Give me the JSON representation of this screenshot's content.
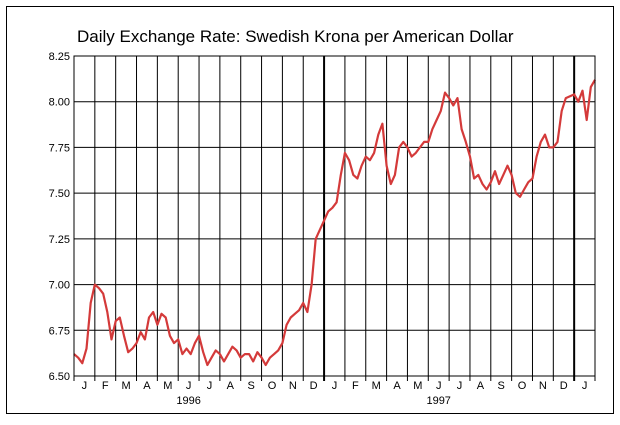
{
  "chart_data": {
    "type": "line",
    "title": "Daily Exchange Rate: Swedish Krona per American Dollar",
    "xlabel": "",
    "ylabel": "",
    "ylim": [
      6.5,
      8.25
    ],
    "yticks": [
      "6.50",
      "6.75",
      "7.00",
      "7.25",
      "7.50",
      "7.75",
      "8.00",
      "8.25"
    ],
    "xticks": [
      "J",
      "F",
      "M",
      "A",
      "M",
      "J",
      "J",
      "A",
      "S",
      "O",
      "N",
      "D",
      "J",
      "F",
      "M",
      "A",
      "M",
      "J",
      "J",
      "A",
      "S",
      "O",
      "N",
      "D",
      "J"
    ],
    "year_labels": [
      {
        "label": "1996",
        "month_index": 5.5
      },
      {
        "label": "1997",
        "month_index": 17.5
      }
    ],
    "xlim_months": [
      0,
      25
    ],
    "grid": true,
    "line_color": "#d43a3a",
    "series": [
      {
        "x_months": [
          0.0,
          0.2,
          0.4,
          0.6,
          0.8,
          1.0,
          1.2,
          1.4,
          1.6,
          1.8,
          2.0,
          2.2,
          2.4,
          2.6,
          2.8,
          3.0,
          3.2,
          3.4,
          3.6,
          3.8,
          4.0,
          4.2,
          4.4,
          4.6,
          4.8,
          5.0,
          5.2,
          5.4,
          5.6,
          5.8,
          6.0,
          6.2,
          6.4,
          6.6,
          6.8,
          7.0,
          7.2,
          7.4,
          7.6,
          7.8,
          8.0,
          8.2,
          8.4,
          8.6,
          8.8,
          9.0,
          9.2,
          9.4,
          9.6,
          9.8,
          10.0,
          10.2,
          10.4,
          10.6,
          10.8,
          11.0,
          11.2,
          11.4,
          11.6,
          11.8,
          12.0,
          12.2,
          12.4,
          12.6,
          12.8,
          13.0,
          13.2,
          13.4,
          13.6,
          13.8,
          14.0,
          14.2,
          14.4,
          14.6,
          14.8,
          15.0,
          15.2,
          15.4,
          15.6,
          15.8,
          16.0,
          16.2,
          16.4,
          16.6,
          16.8,
          17.0,
          17.2,
          17.4,
          17.6,
          17.8,
          18.0,
          18.2,
          18.4,
          18.6,
          18.8,
          19.0,
          19.2,
          19.4,
          19.6,
          19.8,
          20.0,
          20.2,
          20.4,
          20.6,
          20.8,
          21.0,
          21.2,
          21.4,
          21.6,
          21.8,
          22.0,
          22.2,
          22.4,
          22.6,
          22.8,
          23.0,
          23.2,
          23.4,
          23.6,
          23.8,
          24.0,
          24.2,
          24.4,
          24.6,
          24.8,
          25.0
        ],
        "values": [
          6.62,
          6.6,
          6.57,
          6.65,
          6.9,
          7.0,
          6.98,
          6.95,
          6.85,
          6.7,
          6.8,
          6.82,
          6.72,
          6.63,
          6.65,
          6.68,
          6.74,
          6.7,
          6.82,
          6.85,
          6.78,
          6.84,
          6.82,
          6.72,
          6.68,
          6.7,
          6.62,
          6.65,
          6.62,
          6.68,
          6.72,
          6.63,
          6.56,
          6.6,
          6.64,
          6.62,
          6.58,
          6.62,
          6.66,
          6.64,
          6.6,
          6.62,
          6.62,
          6.58,
          6.63,
          6.6,
          6.56,
          6.6,
          6.62,
          6.64,
          6.68,
          6.78,
          6.82,
          6.84,
          6.86,
          6.9,
          6.85,
          7.0,
          7.25,
          7.3,
          7.35,
          7.4,
          7.42,
          7.45,
          7.6,
          7.72,
          7.68,
          7.6,
          7.58,
          7.65,
          7.7,
          7.68,
          7.72,
          7.82,
          7.88,
          7.65,
          7.55,
          7.6,
          7.75,
          7.78,
          7.75,
          7.7,
          7.72,
          7.75,
          7.78,
          7.78,
          7.85,
          7.9,
          7.95,
          8.05,
          8.02,
          7.98,
          8.02,
          7.85,
          7.78,
          7.7,
          7.58,
          7.6,
          7.55,
          7.52,
          7.56,
          7.62,
          7.55,
          7.6,
          7.65,
          7.6,
          7.5,
          7.48,
          7.52,
          7.56,
          7.58,
          7.7,
          7.78,
          7.82,
          7.75,
          7.75,
          7.78,
          7.95,
          8.02,
          8.03,
          8.04,
          8.0,
          8.06,
          7.9,
          8.08,
          8.12
        ]
      }
    ]
  }
}
